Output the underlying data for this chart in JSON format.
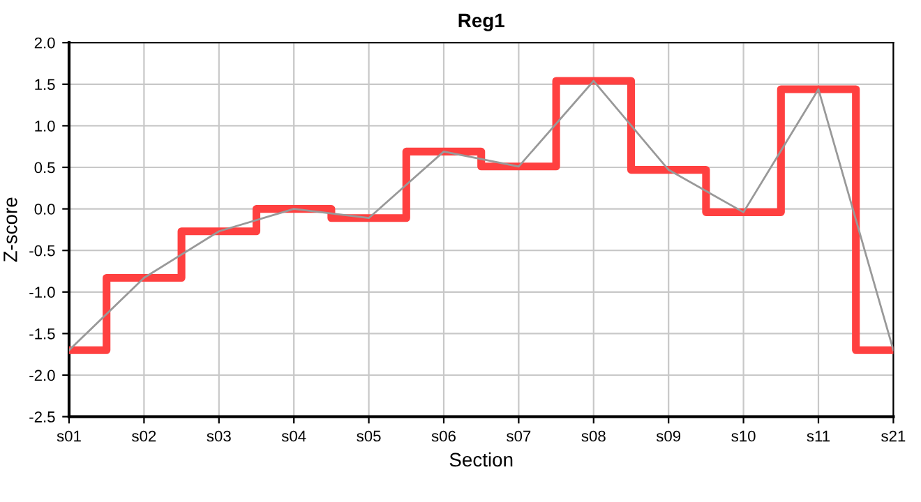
{
  "chart_data": {
    "type": "line",
    "title": "Reg1",
    "xlabel": "Section",
    "ylabel": "Z-score",
    "categories": [
      "s01",
      "s02",
      "s03",
      "s04",
      "s05",
      "s06",
      "s07",
      "s08",
      "s09",
      "s10",
      "s11",
      "s21"
    ],
    "series": [
      {
        "type": "step",
        "color": "#ff4040",
        "values": [
          -1.7,
          -0.83,
          -0.27,
          0.0,
          -0.11,
          0.69,
          0.51,
          1.54,
          0.47,
          -0.04,
          1.44,
          -1.7
        ]
      },
      {
        "color": "#999999",
        "values": [
          -1.7,
          -0.83,
          -0.27,
          0.0,
          -0.11,
          0.69,
          0.51,
          1.54,
          0.47,
          -0.04,
          1.44,
          -1.7
        ]
      }
    ],
    "ylim": [
      -2.5,
      2.0
    ],
    "yticks": [
      {
        "value": -2.5,
        "label": "-2.5"
      },
      {
        "value": -2.0,
        "label": "-2.0"
      },
      {
        "value": -1.5,
        "label": "-1.5"
      },
      {
        "value": -1.0,
        "label": "-1.0"
      },
      {
        "value": -0.5,
        "label": "-0.5"
      },
      {
        "value": 0.0,
        "label": "0.0"
      },
      {
        "value": 0.5,
        "label": "0.5"
      },
      {
        "value": 1.0,
        "label": "1.0"
      },
      {
        "value": 1.5,
        "label": "1.5"
      },
      {
        "value": 2.0,
        "label": "2.0"
      }
    ],
    "grid": true,
    "legend": false,
    "marker": "none",
    "line_style": "solid"
  }
}
